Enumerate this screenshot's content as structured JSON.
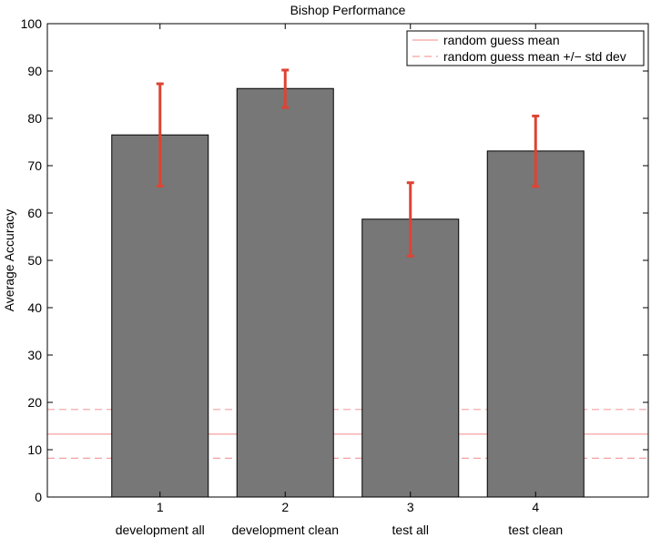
{
  "chart_data": {
    "type": "bar",
    "title": "Bishop Performance",
    "xlabel": "",
    "ylabel": "Average Accuracy",
    "x_tick_numbers": [
      "1",
      "2",
      "3",
      "4"
    ],
    "categories": [
      "development all",
      "development clean",
      "test all",
      "test clean"
    ],
    "values": [
      76.5,
      86.3,
      58.7,
      73.1
    ],
    "error_low": [
      65.7,
      82.3,
      50.9,
      65.6
    ],
    "error_high": [
      87.3,
      90.2,
      66.4,
      80.5
    ],
    "ylim": [
      0,
      100
    ],
    "yticks": [
      0,
      10,
      20,
      30,
      40,
      50,
      60,
      70,
      80,
      90,
      100
    ],
    "xlim": [
      0.1,
      4.9
    ],
    "grid": false,
    "legend_position": "top-right",
    "random_guess_mean": 13.3,
    "random_guess_std_low": 8.2,
    "random_guess_std_high": 18.5,
    "legend": [
      {
        "label": "random guess mean",
        "style": "solid"
      },
      {
        "label": "random guess mean +/− std dev",
        "style": "dashed"
      }
    ],
    "colors": {
      "bar_fill": "#777777",
      "bar_edge": "#000000",
      "error_bar": "#dd4433",
      "guess_line": "#f5a0a0"
    }
  }
}
